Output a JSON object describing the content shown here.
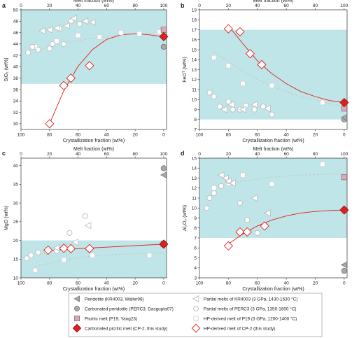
{
  "figure": {
    "colors": {
      "band": "#bfe5e8",
      "red": "#e0201b",
      "pink": "#e3a5b8",
      "grey_fill": "#a8a8a8",
      "grey_edge": "#707070",
      "open_edge": "#b8b8b8",
      "gray_line": "#c6c6c6"
    }
  },
  "chart_data": [
    {
      "panel": "a",
      "type": "scatter",
      "title": "",
      "xlabel_top": "Melt fraction (wt%)",
      "xlabel": "Crystallization fraction (wt%)",
      "ylabel": "SiO₂ (wt%)",
      "xlim": [
        100,
        -2
      ],
      "xlim_top": [
        0,
        102
      ],
      "ylim": [
        29,
        50
      ],
      "yticks": [
        30,
        32,
        34,
        36,
        38,
        40,
        42,
        44,
        46,
        48,
        50
      ],
      "xticks": [
        100,
        80,
        60,
        40,
        20,
        0
      ],
      "xticks_top": [
        0,
        20,
        40,
        60,
        80,
        100
      ],
      "band": [
        37,
        50
      ],
      "series": [
        {
          "key": "pm_kr",
          "points": [
            [
              85,
              46.3
            ],
            [
              80,
              46.5
            ],
            [
              75,
              46.8
            ],
            [
              68,
              47.2
            ],
            [
              63,
              48.5
            ],
            [
              55,
              48.0
            ],
            [
              50,
              47.8
            ]
          ]
        },
        {
          "key": "pm_perc",
          "points": [
            [
              95,
              42.5
            ],
            [
              92,
              43.5
            ],
            [
              88,
              43.0
            ],
            [
              80,
              43.2
            ],
            [
              78,
              44.0
            ],
            [
              73,
              46.7
            ],
            [
              70,
              44.0
            ],
            [
              65,
              48.0
            ],
            [
              59,
              47.5
            ]
          ]
        },
        {
          "key": "hp_p19",
          "points": [
            [
              90,
              43.5
            ],
            [
              75,
              44.5
            ],
            [
              60,
              45.5
            ],
            [
              45,
              45.2
            ],
            [
              30,
              46.0
            ],
            [
              17,
              45.8
            ],
            [
              3,
              46.1
            ]
          ]
        },
        {
          "key": "hp_cp2",
          "points": [
            [
              80,
              30.0
            ],
            [
              70,
              36.7
            ],
            [
              65,
              38.0
            ],
            [
              52,
              40.2
            ]
          ]
        },
        {
          "key": "peridotite",
          "points": [
            [
              0,
              45.3
            ]
          ]
        },
        {
          "key": "carb_peridotite",
          "points": [
            [
              0,
              43.5
            ]
          ]
        },
        {
          "key": "picritic",
          "points": [
            [
              0,
              46.5
            ]
          ]
        },
        {
          "key": "cp2",
          "points": [
            [
              0,
              45.3
            ]
          ]
        }
      ],
      "trend_red": [
        [
          80,
          30.0
        ],
        [
          70,
          35.8
        ],
        [
          60,
          40.1
        ],
        [
          50,
          43.0
        ],
        [
          40,
          44.8
        ],
        [
          30,
          45.6
        ],
        [
          20,
          45.8
        ],
        [
          10,
          45.6
        ],
        [
          0,
          45.3
        ]
      ],
      "trend_gray": [
        [
          90,
          42.8
        ],
        [
          70,
          44.2
        ],
        [
          50,
          45.0
        ],
        [
          30,
          45.6
        ],
        [
          10,
          45.9
        ],
        [
          0,
          46.0
        ]
      ]
    },
    {
      "panel": "b",
      "type": "scatter",
      "title": "",
      "xlabel_top": "Melt fraction (wt%)",
      "xlabel": "Crystallization fraction (wt%)",
      "ylabel": "FeOᵀ (wt%)",
      "xlim": [
        100,
        -2
      ],
      "xlim_top": [
        0,
        102
      ],
      "ylim": [
        7,
        19
      ],
      "yticks": [
        7,
        8,
        9,
        10,
        11,
        12,
        13,
        14,
        15,
        16,
        17,
        18,
        19
      ],
      "xticks": [
        100,
        80,
        60,
        40,
        20,
        0
      ],
      "xticks_top": [
        0,
        20,
        40,
        60,
        80,
        100
      ],
      "band": [
        8,
        17
      ],
      "series": [
        {
          "key": "pm_kr",
          "points": [
            [
              83,
              9.0
            ],
            [
              78,
              9.5
            ],
            [
              70,
              9.0
            ],
            [
              62,
              9.5
            ],
            [
              53,
              9.1
            ]
          ]
        },
        {
          "key": "pm_perc",
          "points": [
            [
              93,
              10.7
            ],
            [
              90,
              10.3
            ],
            [
              86,
              9.3
            ],
            [
              80,
              9.8
            ],
            [
              77,
              9.0
            ],
            [
              72,
              9.0
            ],
            [
              68,
              9.4
            ],
            [
              62,
              9.0
            ],
            [
              56,
              9.3
            ],
            [
              50,
              8.5
            ]
          ]
        },
        {
          "key": "hp_p19",
          "points": [
            [
              90,
              14.2
            ],
            [
              80,
              13.4
            ],
            [
              70,
              11.6
            ],
            [
              50,
              11.4
            ],
            [
              15,
              9.7
            ]
          ]
        },
        {
          "key": "hp_cp2",
          "points": [
            [
              80,
              17.1
            ],
            [
              72,
              16.8
            ],
            [
              65,
              14.6
            ],
            [
              57,
              13.5
            ]
          ]
        },
        {
          "key": "peridotite",
          "points": [
            [
              0,
              8.2
            ]
          ]
        },
        {
          "key": "carb_peridotite",
          "points": [
            [
              0,
              8.0
            ]
          ]
        },
        {
          "key": "picritic",
          "points": [
            [
              0,
              9.1
            ]
          ]
        },
        {
          "key": "cp2",
          "points": [
            [
              0,
              9.7
            ]
          ]
        }
      ],
      "trend_red": [
        [
          80,
          17.4
        ],
        [
          70,
          15.6
        ],
        [
          60,
          13.9
        ],
        [
          50,
          12.6
        ],
        [
          40,
          11.6
        ],
        [
          30,
          10.8
        ],
        [
          20,
          10.3
        ],
        [
          10,
          9.9
        ],
        [
          0,
          9.7
        ]
      ],
      "trend_gray": [
        [
          90,
          14.8
        ],
        [
          70,
          12.8
        ],
        [
          50,
          11.3
        ],
        [
          30,
          10.3
        ],
        [
          10,
          9.6
        ],
        [
          0,
          9.3
        ]
      ]
    },
    {
      "panel": "c",
      "type": "scatter",
      "title": "",
      "xlabel_top": "Melt fraction (wt%)",
      "xlabel": "Crystallization fraction (wt%)",
      "ylabel": "MgO (wt%)",
      "xlim": [
        100,
        -2
      ],
      "xlim_top": [
        0,
        102
      ],
      "ylim": [
        10,
        42
      ],
      "yticks": [
        10,
        15,
        20,
        25,
        30,
        35,
        40
      ],
      "xticks": [
        100,
        80,
        60,
        40,
        20,
        0
      ],
      "xticks_top": [
        0,
        20,
        40,
        60,
        80,
        100
      ],
      "band": [
        10,
        20
      ],
      "series": [
        {
          "key": "pm_kr",
          "points": [
            [
              82,
              17.5
            ],
            [
              75,
              18.0
            ],
            [
              70,
              18.2
            ],
            [
              62,
              19.5
            ],
            [
              53,
              24.0
            ]
          ]
        },
        {
          "key": "pm_perc",
          "points": [
            [
              96,
              15.2
            ],
            [
              93,
              16.0
            ],
            [
              88,
              16.8
            ],
            [
              82,
              17.0
            ],
            [
              75,
              17.2
            ],
            [
              66,
              22.0
            ],
            [
              55,
              26.5
            ]
          ]
        },
        {
          "key": "hp_p19",
          "points": [
            [
              90,
              12.0
            ],
            [
              70,
              14.8
            ],
            [
              50,
              16.0
            ],
            [
              10,
              16.0
            ]
          ]
        },
        {
          "key": "hp_cp2",
          "points": [
            [
              81,
              17.4
            ],
            [
              70,
              17.9
            ],
            [
              65,
              17.8
            ],
            [
              52,
              17.8
            ]
          ]
        },
        {
          "key": "peridotite",
          "points": [
            [
              0,
              37.5
            ]
          ]
        },
        {
          "key": "carb_peridotite",
          "points": [
            [
              0,
              39.3
            ]
          ]
        },
        {
          "key": "picritic",
          "points": [
            [
              0,
              19.0
            ]
          ]
        },
        {
          "key": "cp2",
          "points": [
            [
              0,
              19.0
            ]
          ]
        }
      ],
      "trend_red": [
        [
          81,
          17.3
        ],
        [
          60,
          17.8
        ],
        [
          40,
          18.2
        ],
        [
          20,
          18.6
        ],
        [
          0,
          19.0
        ]
      ],
      "trend_gray": [
        [
          90,
          13.0
        ],
        [
          70,
          14.8
        ],
        [
          50,
          15.8
        ],
        [
          30,
          16.3
        ],
        [
          10,
          16.6
        ],
        [
          0,
          16.7
        ]
      ]
    },
    {
      "panel": "d",
      "type": "scatter",
      "title": "",
      "xlabel_top": "Melt fraction (wt%)",
      "xlabel": "Crystallization fraction (wt%)",
      "ylabel": "Al₂O₃ (wt%)",
      "xlim": [
        100,
        -2
      ],
      "xlim_top": [
        0,
        102
      ],
      "ylim": [
        3,
        15
      ],
      "yticks": [
        3,
        4,
        5,
        6,
        7,
        8,
        9,
        10,
        11,
        12,
        13,
        14,
        15
      ],
      "xticks": [
        100,
        80,
        60,
        40,
        20,
        0
      ],
      "xticks_top": [
        0,
        20,
        40,
        60,
        80,
        100
      ],
      "band": [
        7,
        15
      ],
      "series": [
        {
          "key": "pm_kr",
          "points": [
            [
              85,
              13.3
            ],
            [
              82,
              13.0
            ],
            [
              80,
              12.7
            ],
            [
              77,
              12.5
            ],
            [
              62,
              11.0
            ],
            [
              53,
              9.5
            ]
          ]
        },
        {
          "key": "pm_perc",
          "points": [
            [
              95,
              10.0
            ],
            [
              93,
              11.0
            ],
            [
              90,
              11.5
            ],
            [
              85,
              12.2
            ],
            [
              80,
              12.7
            ],
            [
              72,
              10.5
            ],
            [
              67,
              8.8
            ],
            [
              60,
              7.5
            ]
          ]
        },
        {
          "key": "hp_p19",
          "points": [
            [
              90,
              12.0
            ],
            [
              80,
              12.5
            ],
            [
              70,
              13.3
            ],
            [
              50,
              12.4
            ],
            [
              15,
              14.4
            ]
          ]
        },
        {
          "key": "hp_cp2",
          "points": [
            [
              80,
              6.2
            ],
            [
              72,
              7.6
            ],
            [
              67,
              7.6
            ],
            [
              55,
              8.2
            ]
          ]
        },
        {
          "key": "peridotite",
          "points": [
            [
              0,
              4.3
            ]
          ]
        },
        {
          "key": "carb_peridotite",
          "points": [
            [
              0,
              3.7
            ]
          ]
        },
        {
          "key": "picritic",
          "points": [
            [
              0,
              13.1
            ]
          ]
        },
        {
          "key": "cp2",
          "points": [
            [
              0,
              9.8
            ]
          ]
        }
      ],
      "trend_red": [
        [
          80,
          6.4
        ],
        [
          70,
          7.4
        ],
        [
          60,
          8.2
        ],
        [
          50,
          8.8
        ],
        [
          40,
          9.2
        ],
        [
          30,
          9.5
        ],
        [
          20,
          9.65
        ],
        [
          10,
          9.75
        ],
        [
          0,
          9.8
        ]
      ],
      "trend_gray": [
        [
          90,
          12.0
        ],
        [
          70,
          12.7
        ],
        [
          50,
          13.1
        ],
        [
          30,
          13.3
        ],
        [
          10,
          13.4
        ],
        [
          0,
          13.4
        ]
      ]
    }
  ],
  "legend": {
    "items": [
      {
        "key": "peridotite",
        "label": "Peridotite (KR4003, Waller98)"
      },
      {
        "key": "pm_kr",
        "label": "Partial melts of KR4003 (3 GPa, 1430-1630 °C)"
      },
      {
        "key": "carb_peridotite",
        "label": "Carbonated peridotite (PERC3, Dasgupta07)"
      },
      {
        "key": "pm_perc",
        "label": "Partial melts of PERC3 (3 GPa, 1350-1600 °C)"
      },
      {
        "key": "picritic",
        "label": "Picritic melt (P19, Yang23)"
      },
      {
        "key": "hp_p19",
        "label": "HP-derived melt of P19 (3 GPa, 1200-1400 °C)"
      },
      {
        "key": "cp2",
        "label": "Carbonated picritic melt (CP-2, this study)"
      },
      {
        "key": "hp_cp2",
        "label": "HP-derived melt of CP-2 (this study)"
      }
    ]
  }
}
